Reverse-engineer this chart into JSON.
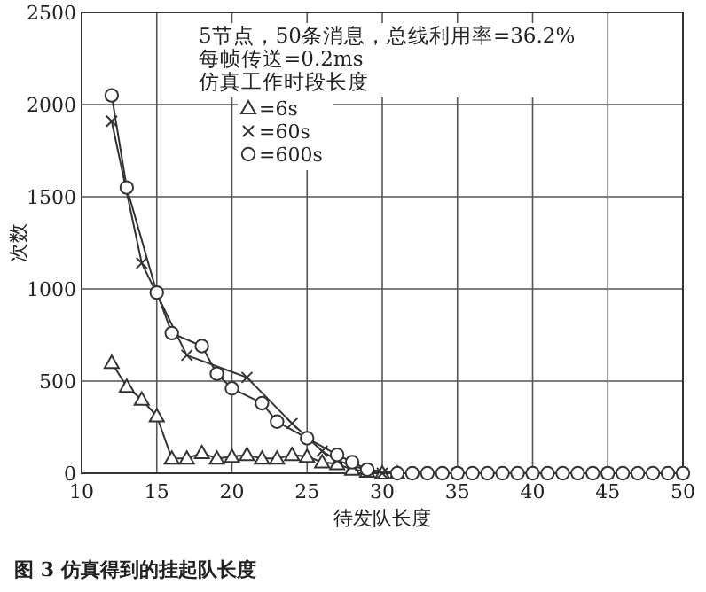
{
  "chart_data": {
    "type": "line",
    "title": "图 3  仿真得到的挂起队长度",
    "xlabel": "待发队长度",
    "ylabel": "次数",
    "legend_title": "仿真工作时段长度",
    "annotations": [
      "5节点，50条消息，总线利用率=36.2%",
      "每帧传送=0.2ms"
    ],
    "xlim": [
      10,
      50
    ],
    "ylim": [
      0,
      2500
    ],
    "xticks": [
      10,
      15,
      20,
      25,
      30,
      35,
      40,
      45,
      50
    ],
    "yticks": [
      0,
      500,
      1000,
      1500,
      2000,
      2500
    ],
    "grid": true,
    "legend": "top",
    "series": [
      {
        "name": "=6s",
        "color": "#333333",
        "marker": "triangle",
        "x": [
          12,
          13,
          14,
          15,
          16,
          17,
          18,
          19,
          20,
          21,
          22,
          23,
          24,
          25,
          26,
          27,
          28,
          29,
          30,
          31
        ],
        "values": [
          600,
          470,
          400,
          310,
          80,
          80,
          110,
          80,
          90,
          100,
          80,
          80,
          100,
          90,
          60,
          50,
          20,
          10,
          0,
          0
        ]
      },
      {
        "name": "=60s",
        "color": "#333333",
        "marker": "cross",
        "x": [
          12,
          14,
          17,
          21,
          24,
          26,
          27,
          28,
          30,
          35,
          40,
          45,
          50
        ],
        "values": [
          1910,
          1140,
          640,
          520,
          270,
          120,
          70,
          40,
          0,
          0,
          0,
          0,
          0
        ]
      },
      {
        "name": "=600s",
        "color": "#333333",
        "marker": "circle",
        "x": [
          12,
          13,
          15,
          16,
          18,
          19,
          20,
          22,
          23,
          25,
          27,
          28,
          29,
          31,
          32,
          33,
          34,
          35,
          36,
          37,
          38,
          39,
          40,
          41,
          42,
          43,
          44,
          45,
          46,
          47,
          48,
          49,
          50
        ],
        "values": [
          2050,
          1550,
          980,
          760,
          690,
          540,
          460,
          380,
          280,
          190,
          100,
          60,
          20,
          0,
          0,
          0,
          0,
          0,
          0,
          0,
          0,
          0,
          0,
          0,
          0,
          0,
          0,
          0,
          0,
          0,
          0,
          0,
          0
        ]
      }
    ]
  }
}
